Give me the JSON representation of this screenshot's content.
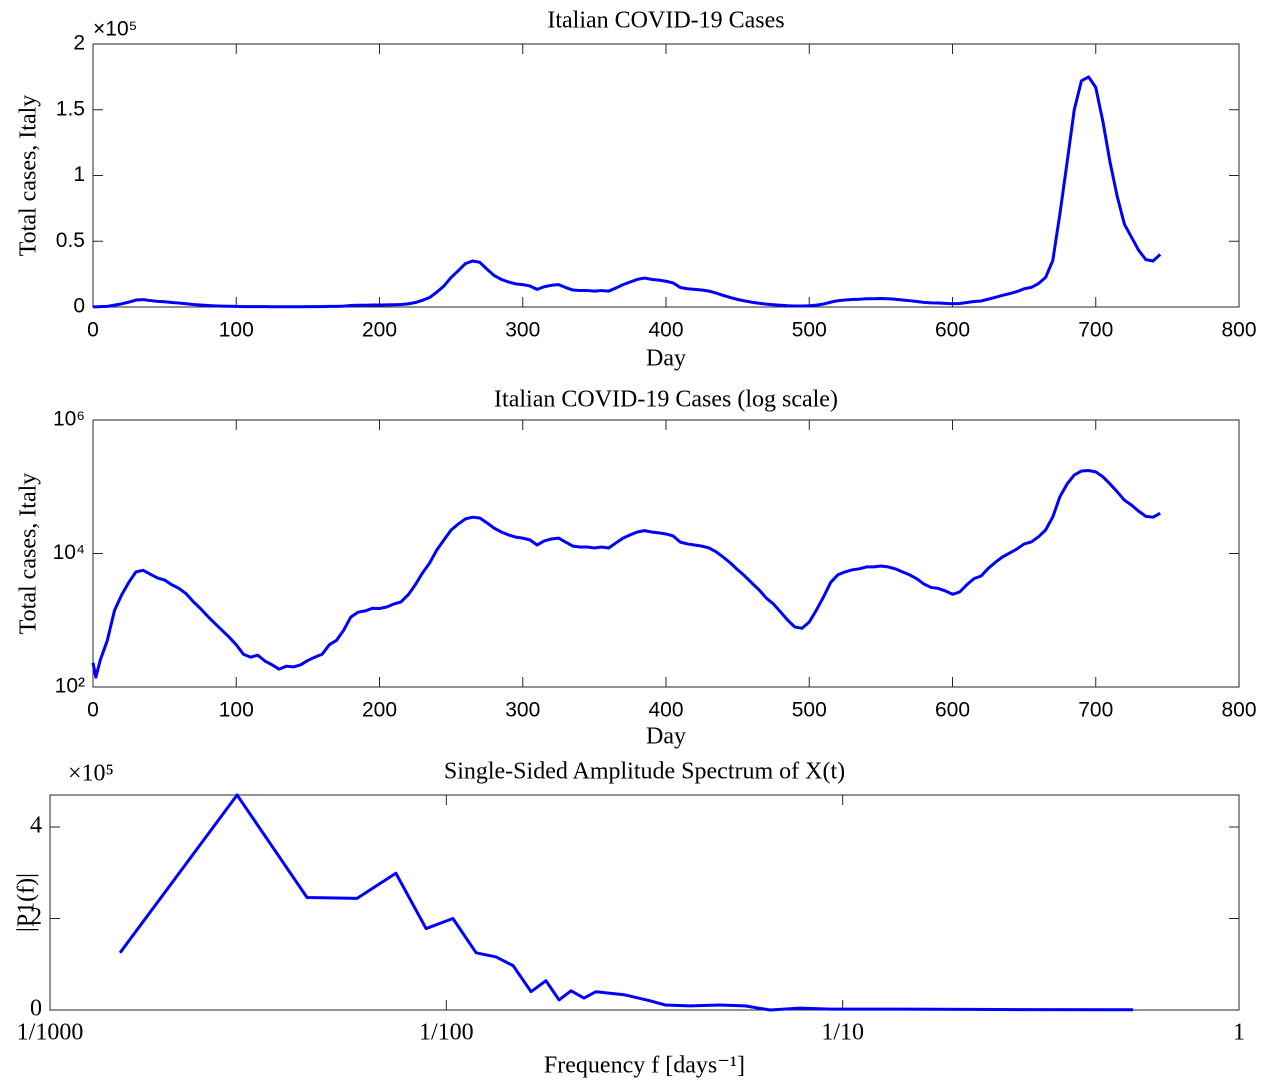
{
  "chart_data": [
    {
      "type": "line",
      "title": "Italian COVID-19 Cases",
      "xlabel": "Day",
      "ylabel": "Total cases, Italy",
      "y_multiplier": "×10⁵",
      "xlim": [
        0,
        800
      ],
      "xticks": [
        0,
        100,
        200,
        300,
        400,
        500,
        600,
        700,
        800
      ],
      "ylim": [
        0,
        200000
      ],
      "yticks": [
        0,
        {
          "value": 50000,
          "label": "0.5"
        },
        {
          "value": 100000,
          "label": "1"
        },
        {
          "value": 150000,
          "label": "1.5"
        },
        {
          "value": 200000,
          "label": "2"
        }
      ],
      "xscale": "linear",
      "yscale": "linear",
      "grid": false,
      "x": [
        0,
        2,
        5,
        10,
        15,
        20,
        25,
        30,
        35,
        40,
        45,
        50,
        55,
        60,
        65,
        70,
        75,
        80,
        85,
        90,
        95,
        100,
        105,
        110,
        115,
        120,
        125,
        130,
        135,
        140,
        145,
        150,
        155,
        160,
        165,
        170,
        175,
        180,
        185,
        190,
        195,
        200,
        205,
        210,
        215,
        220,
        225,
        230,
        235,
        240,
        245,
        250,
        255,
        260,
        265,
        270,
        275,
        280,
        285,
        290,
        295,
        300,
        305,
        310,
        315,
        320,
        325,
        330,
        335,
        340,
        345,
        350,
        355,
        360,
        365,
        370,
        375,
        380,
        385,
        390,
        395,
        400,
        405,
        410,
        415,
        420,
        425,
        430,
        435,
        440,
        445,
        450,
        455,
        460,
        465,
        470,
        475,
        480,
        485,
        490,
        495,
        500,
        505,
        510,
        515,
        520,
        525,
        530,
        535,
        540,
        545,
        550,
        555,
        560,
        565,
        570,
        575,
        580,
        585,
        590,
        595,
        600,
        605,
        610,
        615,
        620,
        625,
        630,
        635,
        640,
        645,
        650,
        655,
        660,
        665,
        670,
        675,
        680,
        685,
        690,
        695,
        700,
        705,
        710,
        715,
        720,
        725,
        730,
        735,
        740,
        745
      ],
      "series": [
        {
          "name": "Italy",
          "color": "#0000ff",
          "values": [
            230,
            140,
            250,
            500,
            1400,
            2400,
            3700,
            5300,
            5600,
            4900,
            4300,
            4000,
            3400,
            3000,
            2500,
            1900,
            1500,
            1150,
            900,
            710,
            560,
            430,
            310,
            280,
            300,
            245,
            215,
            185,
            205,
            200,
            215,
            250,
            280,
            310,
            430,
            500,
            710,
            1120,
            1320,
            1380,
            1510,
            1500,
            1580,
            1750,
            1880,
            2400,
            3400,
            5100,
            7200,
            11300,
            16000,
            22500,
            27600,
            33000,
            35000,
            34000,
            28800,
            24000,
            21000,
            19000,
            17600,
            17000,
            16000,
            13400,
            15400,
            16500,
            17000,
            14800,
            12900,
            12500,
            12500,
            12100,
            12500,
            12100,
            14400,
            17000,
            19000,
            21000,
            22000,
            21000,
            20400,
            19600,
            18300,
            14800,
            13900,
            13400,
            12900,
            12100,
            10600,
            8800,
            7200,
            5700,
            4600,
            3600,
            2850,
            2150,
            1750,
            1330,
            1000,
            790,
            760,
            940,
            1420,
            2240,
            3700,
            4800,
            5300,
            5700,
            5900,
            6300,
            6300,
            6500,
            6300,
            5900,
            5300,
            4800,
            4200,
            3500,
            3100,
            3000,
            2750,
            2450,
            2650,
            3400,
            4200,
            4600,
            6000,
            7400,
            8900,
            10200,
            11700,
            13900,
            14900,
            17800,
            22500,
            35300,
            71000,
            110000,
            150000,
            172000,
            175000,
            167000,
            141000,
            110000,
            84000,
            63000,
            53000,
            43000,
            36000,
            35000,
            40000
          ]
        }
      ]
    },
    {
      "type": "line",
      "title": "Italian COVID-19 Cases (log scale)",
      "xlabel": "Day",
      "ylabel": "Total cases, Italy",
      "xlim": [
        0,
        800
      ],
      "xticks": [
        0,
        100,
        200,
        300,
        400,
        500,
        600,
        700,
        800
      ],
      "ylim": [
        100,
        1000000
      ],
      "yticks": [
        {
          "value": 100,
          "label": "10²"
        },
        {
          "value": 10000,
          "label": "10⁴"
        },
        {
          "value": 1000000,
          "label": "10⁶"
        }
      ],
      "xscale": "linear",
      "yscale": "log",
      "grid": false,
      "x": [
        0,
        2,
        5,
        10,
        15,
        20,
        25,
        30,
        35,
        40,
        45,
        50,
        55,
        60,
        65,
        70,
        75,
        80,
        85,
        90,
        95,
        100,
        105,
        110,
        115,
        120,
        125,
        130,
        135,
        140,
        145,
        150,
        155,
        160,
        165,
        170,
        175,
        180,
        185,
        190,
        195,
        200,
        205,
        210,
        215,
        220,
        225,
        230,
        235,
        240,
        245,
        250,
        255,
        260,
        265,
        270,
        275,
        280,
        285,
        290,
        295,
        300,
        305,
        310,
        315,
        320,
        325,
        330,
        335,
        340,
        345,
        350,
        355,
        360,
        365,
        370,
        375,
        380,
        385,
        390,
        395,
        400,
        405,
        410,
        415,
        420,
        425,
        430,
        435,
        440,
        445,
        450,
        455,
        460,
        465,
        470,
        475,
        480,
        485,
        490,
        495,
        500,
        505,
        510,
        515,
        520,
        525,
        530,
        535,
        540,
        545,
        550,
        555,
        560,
        565,
        570,
        575,
        580,
        585,
        590,
        595,
        600,
        605,
        610,
        615,
        620,
        625,
        630,
        635,
        640,
        645,
        650,
        655,
        660,
        665,
        670,
        675,
        680,
        685,
        690,
        695,
        700,
        705,
        710,
        715,
        720,
        725,
        730,
        735,
        740,
        745
      ],
      "series": [
        {
          "name": "Italy",
          "color": "#0000ff",
          "values": [
            230,
            140,
            250,
            500,
            1400,
            2400,
            3700,
            5300,
            5600,
            4900,
            4300,
            4000,
            3400,
            3000,
            2500,
            1900,
            1500,
            1150,
            900,
            710,
            560,
            430,
            310,
            280,
            300,
            245,
            215,
            185,
            205,
            200,
            215,
            250,
            280,
            310,
            430,
            500,
            710,
            1120,
            1320,
            1380,
            1510,
            1500,
            1580,
            1750,
            1880,
            2400,
            3400,
            5100,
            7200,
            11300,
            16000,
            22500,
            27600,
            33000,
            35000,
            34000,
            28800,
            24000,
            21000,
            19000,
            17600,
            17000,
            16000,
            13400,
            15400,
            16500,
            17000,
            14800,
            12900,
            12500,
            12500,
            12100,
            12500,
            12100,
            14400,
            17000,
            19000,
            21000,
            22000,
            21000,
            20400,
            19600,
            18300,
            14800,
            13900,
            13400,
            12900,
            12100,
            10600,
            8800,
            7200,
            5700,
            4600,
            3600,
            2850,
            2150,
            1750,
            1330,
            1000,
            790,
            760,
            940,
            1420,
            2240,
            3700,
            4800,
            5300,
            5700,
            5900,
            6300,
            6300,
            6500,
            6300,
            5900,
            5300,
            4800,
            4200,
            3500,
            3100,
            3000,
            2750,
            2450,
            2650,
            3400,
            4200,
            4600,
            6000,
            7400,
            8900,
            10200,
            11700,
            13900,
            14900,
            17800,
            22500,
            35300,
            71000,
            110000,
            150000,
            172000,
            175000,
            167000,
            141000,
            110000,
            84000,
            63000,
            53000,
            43000,
            36000,
            35000,
            40000
          ]
        }
      ]
    },
    {
      "type": "line",
      "title": "Single-Sided Amplitude Spectrum of X(t)",
      "xlabel": "Frequency f [days⁻¹]",
      "ylabel": "|P1(f)|",
      "y_multiplier": "×10⁵",
      "xlim": [
        0.001,
        1
      ],
      "xticks": [
        {
          "value": 0.001,
          "label": "1/1000"
        },
        {
          "value": 0.01,
          "label": "1/100"
        },
        {
          "value": 0.1,
          "label": "1/10"
        },
        1
      ],
      "ylim": [
        0,
        470000
      ],
      "yticks": [
        0,
        {
          "value": 200000,
          "label": "2"
        },
        {
          "value": 400000,
          "label": "4"
        }
      ],
      "xscale": "log",
      "yscale": "linear",
      "grid": false,
      "x": [
        0.001502,
        0.002965,
        0.004451,
        0.005953,
        0.00746,
        0.00889,
        0.01039,
        0.01189,
        0.01335,
        0.01474,
        0.01636,
        0.01784,
        0.01925,
        0.02064,
        0.02225,
        0.02385,
        0.02825,
        0.03266,
        0.03563,
        0.04121,
        0.04906,
        0.05673,
        0.06559,
        0.07808,
        0.0929,
        0.1396,
        0.2495,
        0.5404
      ],
      "series": [
        {
          "name": "|P1(f)|",
          "color": "#0000ff",
          "values": [
            125000,
            470000,
            246000,
            244000,
            299000,
            178000,
            200000,
            125000,
            116000,
            97000,
            40000,
            64000,
            22000,
            42000,
            26000,
            40000,
            33000,
            20000,
            11000,
            9000,
            11000,
            9000,
            0,
            4000,
            2000,
            2000,
            1000,
            500
          ]
        }
      ]
    }
  ]
}
